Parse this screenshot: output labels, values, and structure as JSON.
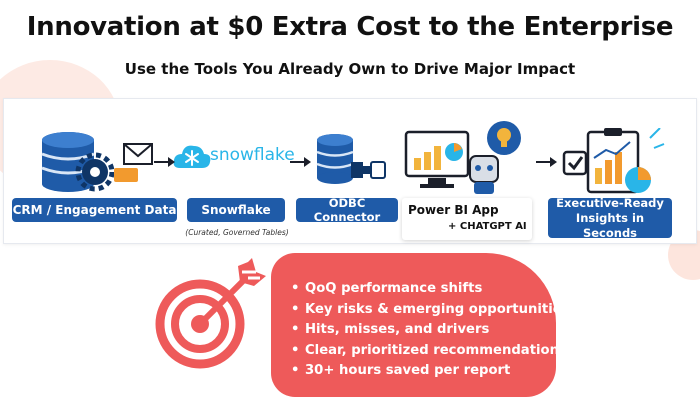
{
  "header": {
    "title": "Innovation at $0 Extra Cost to the Enterprise",
    "subtitle": "Use the Tools You Already Own to Drive Major Impact"
  },
  "flow": {
    "crm_label": "CRM / Engagement Data",
    "snowflake_label": "Snowflake",
    "snowflake_logo_text": "snowflake",
    "snowflake_note": "(Curated, Governed Tables)",
    "odbc_label": "ODBC Connector",
    "powerbi_line1": "Power BI App",
    "powerbi_line2": "+ CHATGPT AI",
    "exec_line1": "Executive-Ready",
    "exec_line2": "Insights in Seconds"
  },
  "benefits": [
    "QoQ performance shifts",
    "Key risks & emerging opportunities",
    "Hits, misses, and drivers",
    "Clear, prioritized recommendations",
    "30+ hours saved per report"
  ],
  "colors": {
    "pill": "#1f5ba8",
    "panel": "#ee5a5a",
    "accent_orange": "#f29a2e",
    "snowflake_blue": "#29b5e8",
    "target_red": "#ee5a5a"
  },
  "icons": [
    "database-gear-icon",
    "envelope-icon",
    "snowflake-cloud-icon",
    "database-plug-icon",
    "dashboard-robot-icon",
    "lightbulb-icon",
    "report-chart-icon",
    "target-arrow-icon",
    "arrow-right-icon"
  ]
}
